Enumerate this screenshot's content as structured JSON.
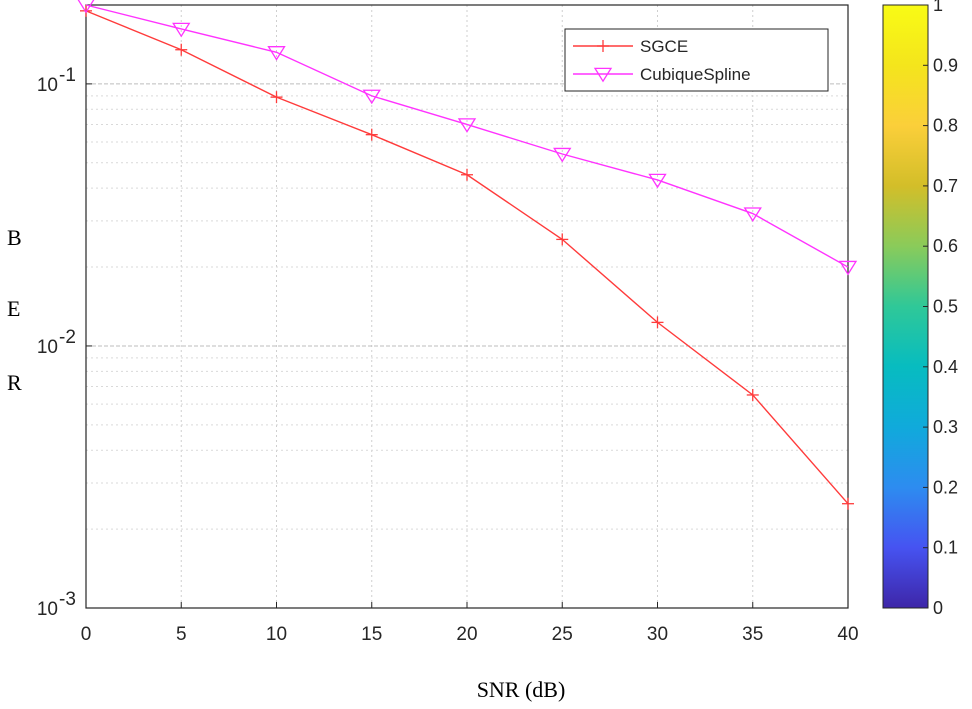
{
  "chart_data": {
    "type": "line",
    "yscale": "log",
    "x": [
      0,
      5,
      10,
      15,
      20,
      25,
      30,
      35,
      40
    ],
    "xlim": [
      0,
      40
    ],
    "xticks": [
      0,
      5,
      10,
      15,
      20,
      25,
      30,
      35,
      40
    ],
    "ylim": [
      0.001,
      0.2
    ],
    "ytick_labels": [
      {
        "value": 0.1,
        "base": "10",
        "exp": "-1"
      },
      {
        "value": 0.01,
        "base": "10",
        "exp": "-2"
      },
      {
        "value": 0.001,
        "base": "10",
        "exp": "-3"
      }
    ],
    "grid": true,
    "xlabel": "SNR  (dB)",
    "ylabel_letters": [
      "B",
      "E",
      "R"
    ],
    "legend_position": "top-right",
    "series": [
      {
        "name": "SGCE",
        "color": "#ff3b3b",
        "marker": "plus",
        "values": [
          0.19,
          0.135,
          0.089,
          0.064,
          0.045,
          0.0255,
          0.0123,
          0.0065,
          0.0025
        ]
      },
      {
        "name": "CubiqueSpline",
        "color": "#ff33ff",
        "marker": "triangle-down",
        "values": [
          0.2,
          0.162,
          0.132,
          0.09,
          0.07,
          0.054,
          0.043,
          0.032,
          0.02
        ]
      }
    ],
    "colorbar": {
      "ticks": [
        "0",
        "0.1",
        "0.2",
        "0.3",
        "0.4",
        "0.5",
        "0.6",
        "0.7",
        "0.8",
        "0.9",
        "1"
      ],
      "colors": [
        "#3e26a8",
        "#4653f1",
        "#2d8cf0",
        "#10aadb",
        "#07bcc0",
        "#2fc898",
        "#8acb5a",
        "#d3be29",
        "#fbcf3a",
        "#f4e51c",
        "#f9fb15"
      ]
    }
  }
}
